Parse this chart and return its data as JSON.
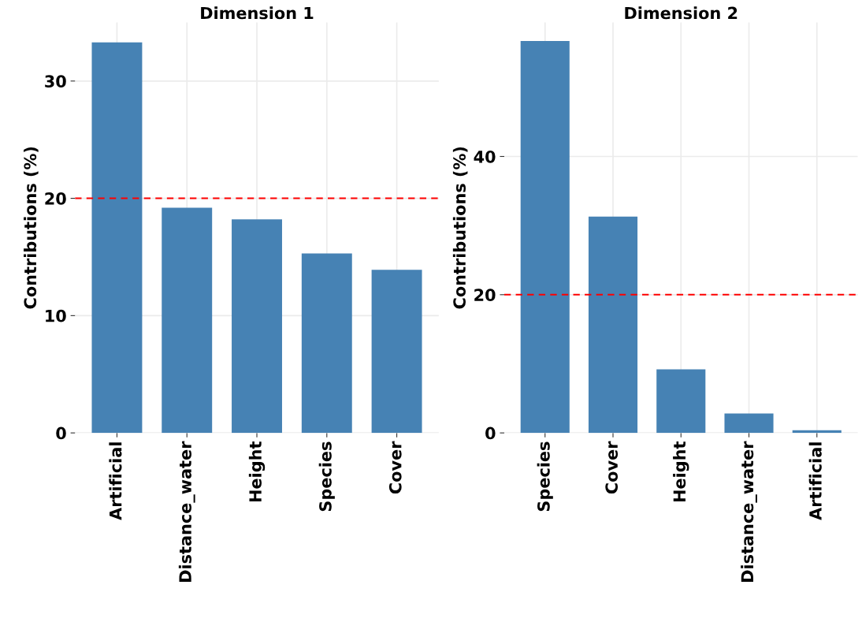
{
  "chart_data": [
    {
      "type": "bar",
      "title": "Dimension 1",
      "ylabel": "Contributions (%)",
      "categories": [
        "Artificial",
        "Distance_water",
        "Height",
        "Species",
        "Cover"
      ],
      "values": [
        33.3,
        19.2,
        18.2,
        15.3,
        13.9
      ],
      "color": "#4682b4",
      "ylim": [
        0,
        35
      ],
      "yticks": [
        0,
        10,
        20,
        30
      ],
      "grid": true,
      "ref_lines": [
        {
          "axis": "y",
          "value": 20,
          "color": "#ff0000",
          "line_style": "dashed"
        }
      ]
    },
    {
      "type": "bar",
      "title": "Dimension 2",
      "ylabel": "Contributions (%)",
      "categories": [
        "Species",
        "Cover",
        "Height",
        "Distance_water",
        "Artificial"
      ],
      "values": [
        56.7,
        31.3,
        9.2,
        2.8,
        0.4
      ],
      "color": "#4682b4",
      "ylim": [
        0,
        59.4
      ],
      "yticks": [
        0,
        20,
        40
      ],
      "grid": true,
      "ref_lines": [
        {
          "axis": "y",
          "value": 20,
          "color": "#ff0000",
          "line_style": "dashed"
        }
      ]
    }
  ]
}
